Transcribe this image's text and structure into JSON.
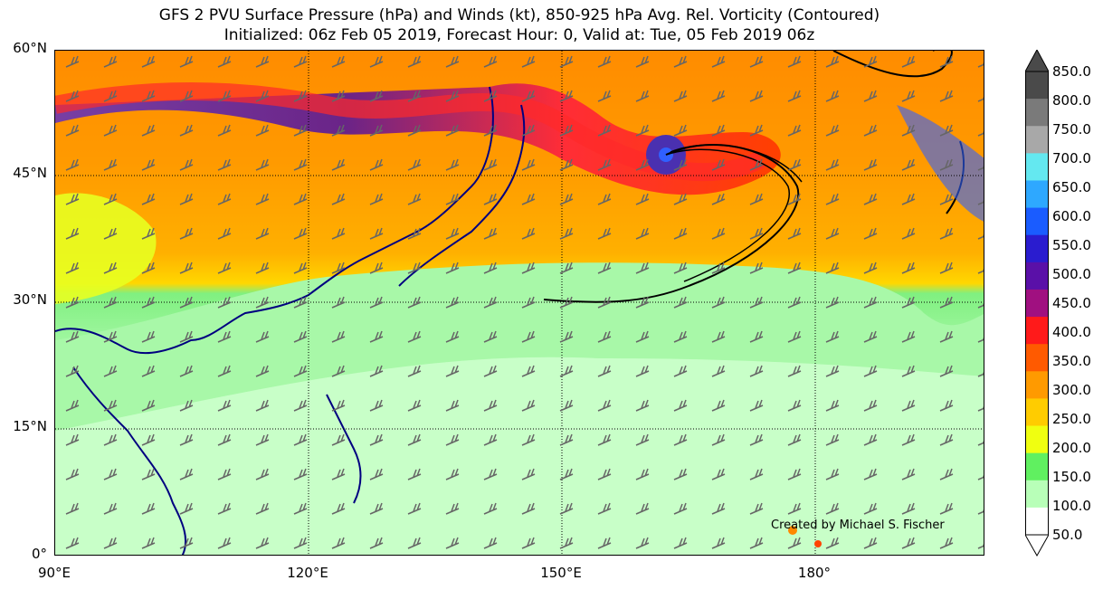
{
  "title": {
    "line1": "GFS 2 PVU Surface Pressure (hPa) and Winds (kt), 850-925 hPa Avg. Rel. Vorticity (Contoured)",
    "line2": "Initialized: 06z Feb 05 2019, Forecast Hour: 0, Valid at: Tue, 05 Feb 2019 06z"
  },
  "map": {
    "lat_labels": [
      "60°N",
      "45°N",
      "30°N",
      "15°N",
      "0°"
    ],
    "lon_labels": [
      "90°E",
      "120°E",
      "150°E",
      "180°"
    ],
    "credit": "Created by Michael S. Fischer"
  },
  "colorbar": {
    "labels": [
      "850.0",
      "800.0",
      "750.0",
      "700.0",
      "650.0",
      "600.0",
      "550.0",
      "500.0",
      "450.0",
      "400.0",
      "350.0",
      "300.0",
      "250.0",
      "200.0",
      "150.0",
      "100.0",
      "50.0"
    ],
    "colors": [
      "#4a4a4a",
      "#7a7a7a",
      "#a8a8a8",
      "#64e8f0",
      "#2ea8ff",
      "#1a5cff",
      "#2a1ccf",
      "#5a10a8",
      "#a01080",
      "#ff1a1a",
      "#ff5a00",
      "#ff9a00",
      "#ffcc00",
      "#f0ff10",
      "#60f060",
      "#b8ffb8",
      "#ffffff"
    ]
  }
}
